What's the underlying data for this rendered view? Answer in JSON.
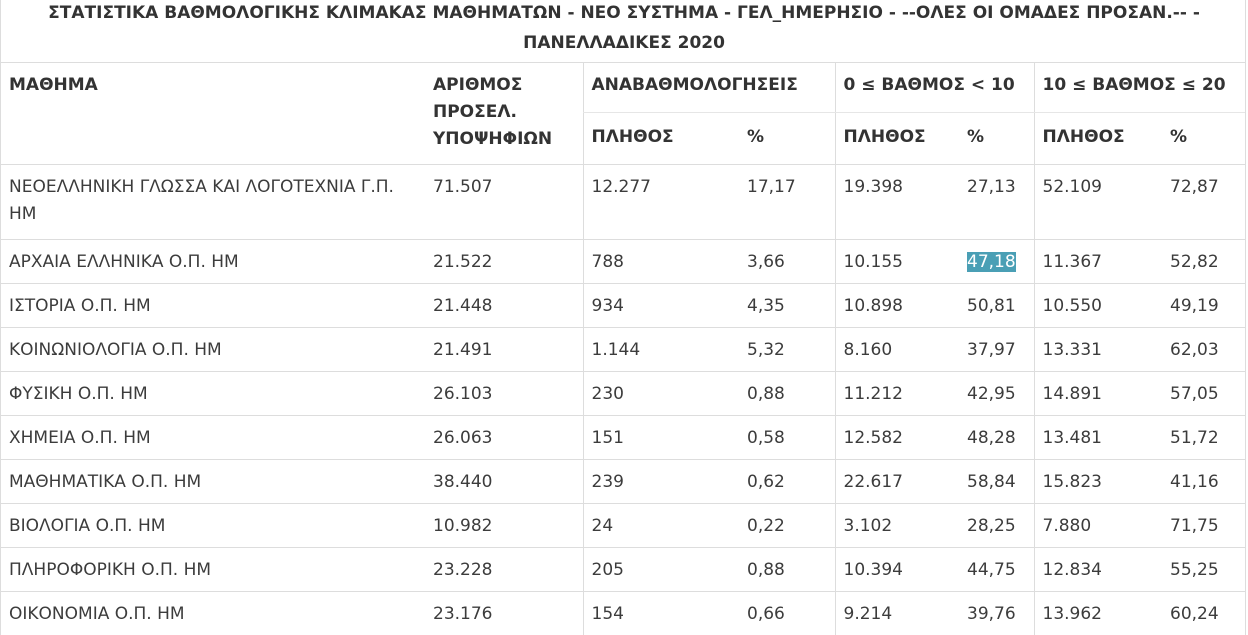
{
  "title": "ΣΤΑΤΙΣΤΙΚΑ ΒΑΘΜΟΛΟΓΙΚΗΣ ΚΛΙΜΑΚΑΣ ΜΑΘΗΜΑΤΩΝ - ΝΕΟ ΣΥΣΤΗΜΑ - ΓΕΛ_ΗΜΕΡΗΣΙΟ - --ΟΛΕΣ ΟΙ ΟΜΑΔΕΣ ΠΡΟΣΑΝ.-- - ΠΑΝΕΛΛΑΔΙΚΕΣ 2020",
  "headers": {
    "subject": "ΜΑΘΗΜΑ",
    "count": "ΑΡΙΘΜΟΣ ΠΡΟΣΕΛ. ΥΠΟΨΗΦΙΩΝ",
    "regrades": "ΑΝΑΒΑΘΜΟΛΟΓΗΣΕΙΣ",
    "low_range": "0 ≤ ΒΑΘΜΟΣ < 10",
    "high_range": "10 ≤ ΒΑΘΜΟΣ ≤ 20",
    "quantity": "ΠΛΗΘΟΣ",
    "percent": "%"
  },
  "rows": [
    [
      "ΝΕΟΕΛΛΗΝΙΚΗ ΓΛΩΣΣΑ ΚΑΙ ΛΟΓΟΤΕΧΝΙΑ Γ.Π. ΗΜ",
      "71.507",
      "12.277",
      "17,17",
      "19.398",
      "27,13",
      "52.109",
      "72,87"
    ],
    [
      "ΑΡΧΑΙΑ ΕΛΛΗΝΙΚΑ Ο.Π. ΗΜ",
      "21.522",
      "788",
      "3,66",
      "10.155",
      "47,18",
      "11.367",
      "52,82"
    ],
    [
      "ΙΣΤΟΡΙΑ Ο.Π. ΗΜ",
      "21.448",
      "934",
      "4,35",
      "10.898",
      "50,81",
      "10.550",
      "49,19"
    ],
    [
      "ΚΟΙΝΩΝΙΟΛΟΓΙΑ Ο.Π. ΗΜ",
      "21.491",
      "1.144",
      "5,32",
      "8.160",
      "37,97",
      "13.331",
      "62,03"
    ],
    [
      "ΦΥΣΙΚΗ Ο.Π. ΗΜ",
      "26.103",
      "230",
      "0,88",
      "11.212",
      "42,95",
      "14.891",
      "57,05"
    ],
    [
      "ΧΗΜΕΙΑ Ο.Π. ΗΜ",
      "26.063",
      "151",
      "0,58",
      "12.582",
      "48,28",
      "13.481",
      "51,72"
    ],
    [
      "ΜΑΘΗΜΑΤΙΚΑ Ο.Π. ΗΜ",
      "38.440",
      "239",
      "0,62",
      "22.617",
      "58,84",
      "15.823",
      "41,16"
    ],
    [
      "ΒΙΟΛΟΓΙΑ Ο.Π. ΗΜ",
      "10.982",
      "24",
      "0,22",
      "3.102",
      "28,25",
      "7.880",
      "71,75"
    ],
    [
      "ΠΛΗΡΟΦΟΡΙΚΗ Ο.Π. ΗΜ",
      "23.228",
      "205",
      "0,88",
      "10.394",
      "44,75",
      "12.834",
      "55,25"
    ],
    [
      "ΟΙΚΟΝΟΜΙΑ Ο.Π. ΗΜ",
      "23.176",
      "154",
      "0,66",
      "9.214",
      "39,76",
      "13.962",
      "60,24"
    ]
  ],
  "selection": {
    "row": 1,
    "col": 5,
    "color": "#4a9fb5"
  }
}
